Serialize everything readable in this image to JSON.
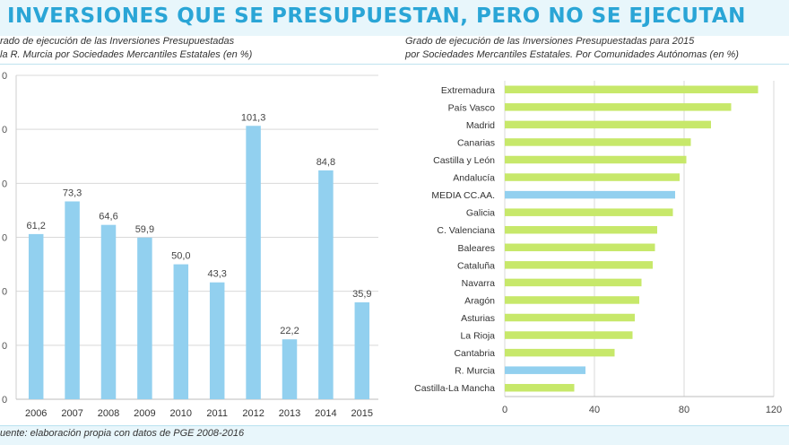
{
  "header": {
    "title": "INVERSIONES QUE SE PRESUPUESTAN, PERO NO SE EJECUTAN"
  },
  "left_panel": {
    "subtitle_line1": "rado de ejecución de las Inversiones Presupuestadas",
    "subtitle_line2": "la R. Murcia por Sociedades Mercantiles Estatales (en %)"
  },
  "right_panel": {
    "subtitle_line1": "Grado de ejecución de las Inversiones Presupuestadas para 2015",
    "subtitle_line2": "por Sociedades Mercantiles Estatales. Por Comunidades Autónomas (en %)"
  },
  "footer": {
    "source": "uente: elaboración propia con datos de PGE 2008-2016"
  },
  "colors": {
    "title": "#2aa5d6",
    "bar_blue": "#92d0ef",
    "bar_green": "#c7e86a",
    "header_bg": "#e8f6fb"
  },
  "chart_data": [
    {
      "type": "bar",
      "categories": [
        "2006",
        "2007",
        "2008",
        "2009",
        "2010",
        "2011",
        "2012",
        "2013",
        "2014",
        "2015"
      ],
      "values": [
        61.2,
        73.3,
        64.6,
        59.9,
        50.0,
        43.3,
        101.3,
        22.2,
        84.8,
        35.9
      ],
      "data_labels": [
        "61,2",
        "73,3",
        "64,6",
        "59,9",
        "50,0",
        "43,3",
        "101,3",
        "22,2",
        "84,8",
        "35,9"
      ],
      "y_tick_labels": [
        "0",
        "0",
        "0",
        "0",
        "0",
        "0",
        "0"
      ],
      "ylim": [
        0,
        120
      ],
      "grid": true,
      "color": "#92d0ef"
    },
    {
      "type": "bar",
      "orientation": "horizontal",
      "categories": [
        "Extremadura",
        "País Vasco",
        "Madrid",
        "Canarias",
        "Castilla y León",
        "Andalucía",
        "MEDIA CC.AA.",
        "Galicia",
        "C. Valenciana",
        "Baleares",
        "Cataluña",
        "Navarra",
        "Aragón",
        "Asturias",
        "La Rioja",
        "Cantabria",
        "R. Murcia",
        "Castilla-La Mancha"
      ],
      "values": [
        113,
        101,
        92,
        83,
        81,
        78,
        76,
        75,
        68,
        67,
        66,
        61,
        60,
        58,
        57,
        49,
        36,
        31
      ],
      "highlight": [
        "MEDIA CC.AA.",
        "R. Murcia"
      ],
      "x_ticks": [
        0,
        40,
        80,
        120
      ],
      "xlim": [
        0,
        120
      ],
      "grid": true,
      "color": "#c7e86a",
      "highlight_color": "#92d0ef"
    }
  ]
}
